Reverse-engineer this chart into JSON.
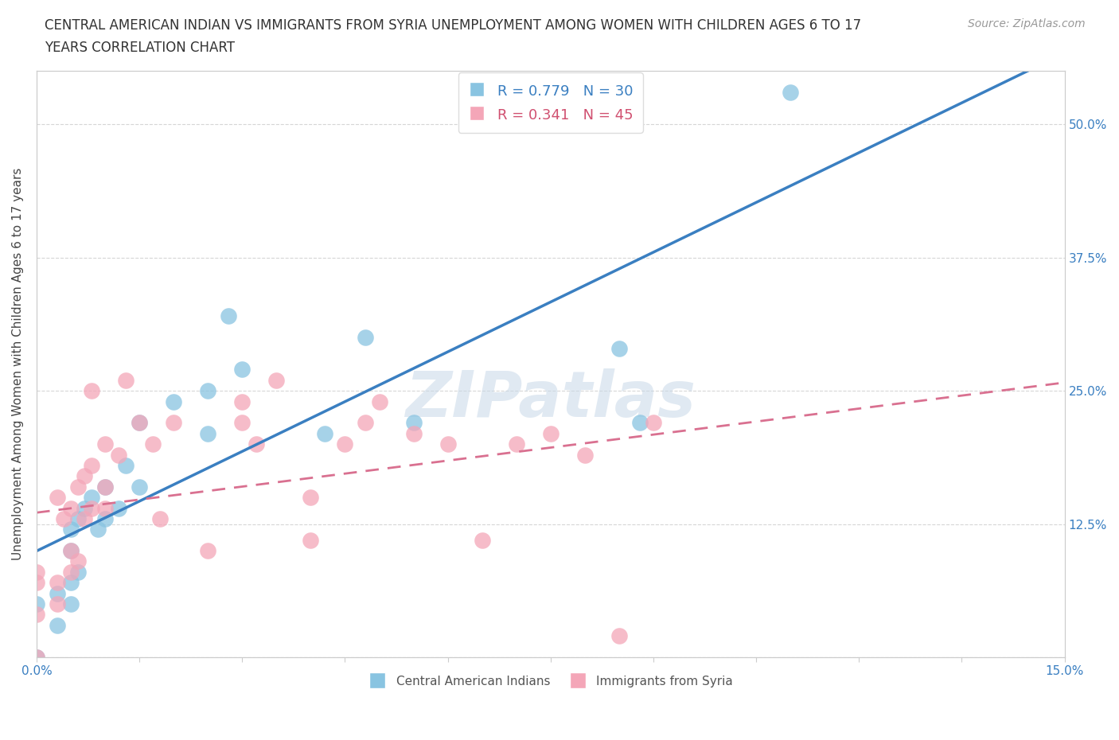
{
  "title_line1": "CENTRAL AMERICAN INDIAN VS IMMIGRANTS FROM SYRIA UNEMPLOYMENT AMONG WOMEN WITH CHILDREN AGES 6 TO 17",
  "title_line2": "YEARS CORRELATION CHART",
  "source": "Source: ZipAtlas.com",
  "ylabel": "Unemployment Among Women with Children Ages 6 to 17 years",
  "xlim": [
    0.0,
    0.15
  ],
  "ylim": [
    0.0,
    0.55
  ],
  "xticks": [
    0.0,
    0.015,
    0.03,
    0.045,
    0.06,
    0.075,
    0.09,
    0.105,
    0.12,
    0.135,
    0.15
  ],
  "xtick_labels": [
    "0.0%",
    "",
    "",
    "",
    "",
    "",
    "",
    "",
    "",
    "",
    "15.0%"
  ],
  "ytick_positions": [
    0.0,
    0.125,
    0.25,
    0.375,
    0.5
  ],
  "right_ytick_labels": [
    "12.5%",
    "25.0%",
    "37.5%",
    "50.0%"
  ],
  "right_ytick_positions": [
    0.125,
    0.25,
    0.375,
    0.5
  ],
  "legend_r1": "R = 0.779",
  "legend_n1": "N = 30",
  "legend_r2": "R = 0.341",
  "legend_n2": "N = 45",
  "color_blue": "#89c4e1",
  "color_pink": "#f4a6b8",
  "color_line_blue": "#3a7fc1",
  "color_line_pink": "#d97090",
  "color_text_blue": "#3a7fc1",
  "color_text_pink": "#d05070",
  "background_color": "#ffffff",
  "grid_color": "#cccccc",
  "blue_points_x": [
    0.0,
    0.0,
    0.003,
    0.003,
    0.005,
    0.005,
    0.005,
    0.005,
    0.006,
    0.006,
    0.007,
    0.008,
    0.009,
    0.01,
    0.01,
    0.012,
    0.013,
    0.015,
    0.015,
    0.02,
    0.025,
    0.025,
    0.028,
    0.03,
    0.042,
    0.048,
    0.055,
    0.085,
    0.088,
    0.11
  ],
  "blue_points_y": [
    0.0,
    0.05,
    0.03,
    0.06,
    0.05,
    0.07,
    0.1,
    0.12,
    0.08,
    0.13,
    0.14,
    0.15,
    0.12,
    0.13,
    0.16,
    0.14,
    0.18,
    0.16,
    0.22,
    0.24,
    0.21,
    0.25,
    0.32,
    0.27,
    0.21,
    0.3,
    0.22,
    0.29,
    0.22,
    0.53
  ],
  "pink_points_x": [
    0.0,
    0.0,
    0.0,
    0.0,
    0.003,
    0.003,
    0.003,
    0.004,
    0.005,
    0.005,
    0.005,
    0.006,
    0.006,
    0.007,
    0.007,
    0.008,
    0.008,
    0.008,
    0.01,
    0.01,
    0.01,
    0.012,
    0.013,
    0.015,
    0.017,
    0.018,
    0.02,
    0.025,
    0.03,
    0.03,
    0.032,
    0.035,
    0.04,
    0.04,
    0.045,
    0.048,
    0.05,
    0.055,
    0.06,
    0.065,
    0.07,
    0.075,
    0.08,
    0.085,
    0.09
  ],
  "pink_points_y": [
    0.0,
    0.04,
    0.07,
    0.08,
    0.05,
    0.07,
    0.15,
    0.13,
    0.08,
    0.1,
    0.14,
    0.09,
    0.16,
    0.13,
    0.17,
    0.14,
    0.18,
    0.25,
    0.16,
    0.2,
    0.14,
    0.19,
    0.26,
    0.22,
    0.2,
    0.13,
    0.22,
    0.1,
    0.24,
    0.22,
    0.2,
    0.26,
    0.15,
    0.11,
    0.2,
    0.22,
    0.24,
    0.21,
    0.2,
    0.11,
    0.2,
    0.21,
    0.19,
    0.02,
    0.22
  ],
  "watermark": "ZIPatlas",
  "cat_label_blue": "Central American Indians",
  "cat_label_pink": "Immigrants from Syria"
}
